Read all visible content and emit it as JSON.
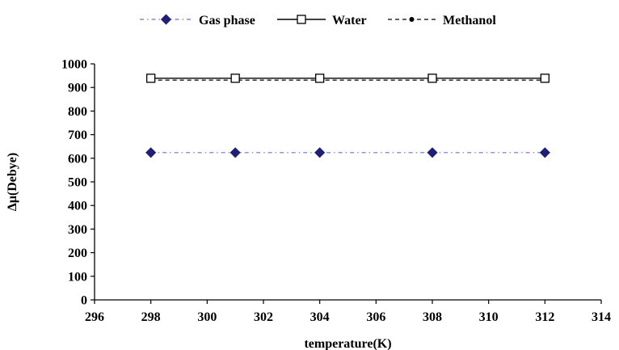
{
  "chart_data": {
    "type": "line",
    "title": "",
    "xlabel": "temperature(K)",
    "ylabel": "Δμ(Debye)",
    "xlim": [
      296,
      314
    ],
    "ylim": [
      0,
      1000
    ],
    "xticks": [
      "296",
      "298",
      "300",
      "302",
      "304",
      "306",
      "308",
      "310",
      "312",
      "314"
    ],
    "yticks": [
      "0",
      "100",
      "200",
      "300",
      "400",
      "500",
      "600",
      "700",
      "800",
      "900",
      "1000"
    ],
    "grid": false,
    "legend_position": "top",
    "x": [
      298,
      301,
      304,
      308,
      312
    ],
    "series": [
      {
        "name": "Gas phase",
        "values": [
          624,
          624,
          624,
          624,
          624
        ],
        "color": "#1f1f7a",
        "line_color": "#6f6fd6",
        "line_style": "dash-dot",
        "marker": "diamond"
      },
      {
        "name": "Water",
        "values": [
          939,
          939,
          939,
          939,
          939
        ],
        "color": "#000000",
        "line_color": "#000000",
        "line_style": "solid",
        "marker": "open-square"
      },
      {
        "name": "Methanol",
        "values": [
          931,
          931,
          931,
          931,
          931
        ],
        "color": "#000000",
        "line_color": "#000000",
        "line_style": "dashed",
        "marker": "dot"
      }
    ]
  }
}
